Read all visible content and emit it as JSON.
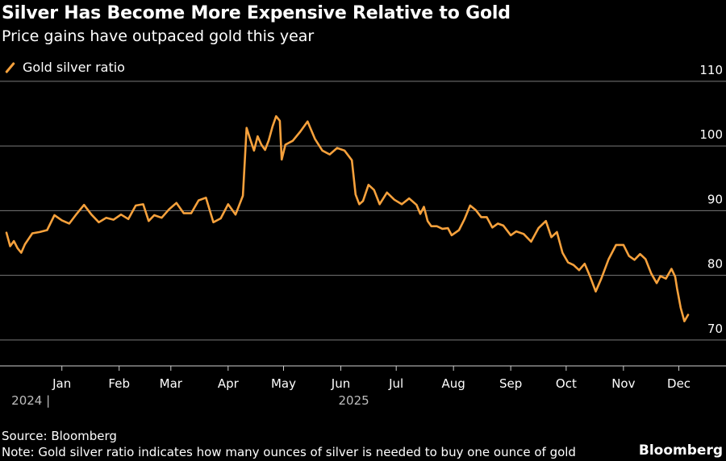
{
  "title": "Silver Has Become More Expensive Relative to Gold",
  "subtitle": "Price gains have outpaced gold this year",
  "source": "Source: Bloomberg",
  "note": "Note: Gold silver ratio indicates how many ounces of silver is needed to buy one ounce of gold",
  "brand": "Bloomberg",
  "colors": {
    "background": "#000000",
    "series": "#F6A13C",
    "grid": "#7a7a7a",
    "text": "#ffffff"
  },
  "chart_data": {
    "type": "line",
    "title": "Silver Has Become More Expensive Relative to Gold",
    "subtitle": "Price gains have outpaced gold this year",
    "xlabel": "",
    "ylabel": "",
    "ylim": [
      66,
      106
    ],
    "yticks": [
      70,
      80,
      90,
      100,
      110
    ],
    "xticks": [
      {
        "label": "Jan",
        "date": "2025-01-01"
      },
      {
        "label": "Feb",
        "date": "2025-02-01"
      },
      {
        "label": "Mar",
        "date": "2025-03-01"
      },
      {
        "label": "Apr",
        "date": "2025-04-01"
      },
      {
        "label": "May",
        "date": "2025-05-01"
      },
      {
        "label": "Jun",
        "date": "2025-06-01"
      },
      {
        "label": "Jul",
        "date": "2025-07-01"
      },
      {
        "label": "Aug",
        "date": "2025-08-01"
      },
      {
        "label": "Sep",
        "date": "2025-09-01"
      },
      {
        "label": "Oct",
        "date": "2025-10-01"
      },
      {
        "label": "Nov",
        "date": "2025-11-01"
      },
      {
        "label": "Dec",
        "date": "2025-12-01"
      }
    ],
    "year_labels": [
      {
        "label": "2024 |",
        "date": "2024-12-06"
      },
      {
        "label": "2025",
        "date": "2025-06-01"
      }
    ],
    "grid": true,
    "legend_position": "top-left",
    "series": [
      {
        "name": "Gold silver ratio",
        "color": "#F6A13C",
        "points": [
          [
            "2024-12-02",
            86.6
          ],
          [
            "2024-12-04",
            84.5
          ],
          [
            "2024-12-06",
            85.3
          ],
          [
            "2024-12-08",
            84.2
          ],
          [
            "2024-12-10",
            83.5
          ],
          [
            "2024-12-12",
            84.8
          ],
          [
            "2024-12-16",
            86.5
          ],
          [
            "2024-12-20",
            86.7
          ],
          [
            "2024-12-24",
            87.0
          ],
          [
            "2024-12-28",
            89.3
          ],
          [
            "2025-01-01",
            88.5
          ],
          [
            "2025-01-05",
            88.0
          ],
          [
            "2025-01-09",
            89.5
          ],
          [
            "2025-01-13",
            90.9
          ],
          [
            "2025-01-17",
            89.4
          ],
          [
            "2025-01-21",
            88.2
          ],
          [
            "2025-01-25",
            88.9
          ],
          [
            "2025-01-29",
            88.6
          ],
          [
            "2025-02-02",
            89.4
          ],
          [
            "2025-02-06",
            88.7
          ],
          [
            "2025-02-10",
            90.8
          ],
          [
            "2025-02-14",
            91.0
          ],
          [
            "2025-02-17",
            88.4
          ],
          [
            "2025-02-20",
            89.3
          ],
          [
            "2025-02-24",
            88.9
          ],
          [
            "2025-02-28",
            90.2
          ],
          [
            "2025-03-04",
            91.2
          ],
          [
            "2025-03-08",
            89.6
          ],
          [
            "2025-03-12",
            89.6
          ],
          [
            "2025-03-16",
            91.6
          ],
          [
            "2025-03-20",
            92.0
          ],
          [
            "2025-03-24",
            88.2
          ],
          [
            "2025-03-28",
            88.8
          ],
          [
            "2025-04-01",
            91.0
          ],
          [
            "2025-04-05",
            89.4
          ],
          [
            "2025-04-09",
            92.3
          ],
          [
            "2025-04-11",
            102.8
          ],
          [
            "2025-04-13",
            101.0
          ],
          [
            "2025-04-15",
            99.3
          ],
          [
            "2025-04-17",
            101.5
          ],
          [
            "2025-04-19",
            100.2
          ],
          [
            "2025-04-21",
            99.4
          ],
          [
            "2025-04-23",
            100.9
          ],
          [
            "2025-04-25",
            103.0
          ],
          [
            "2025-04-27",
            104.6
          ],
          [
            "2025-04-29",
            103.9
          ],
          [
            "2025-04-30",
            97.9
          ],
          [
            "2025-05-02",
            100.2
          ],
          [
            "2025-05-06",
            100.8
          ],
          [
            "2025-05-10",
            102.2
          ],
          [
            "2025-05-14",
            103.8
          ],
          [
            "2025-05-18",
            101.1
          ],
          [
            "2025-05-22",
            99.3
          ],
          [
            "2025-05-26",
            98.7
          ],
          [
            "2025-05-30",
            99.7
          ],
          [
            "2025-06-03",
            99.3
          ],
          [
            "2025-06-07",
            97.8
          ],
          [
            "2025-06-09",
            92.5
          ],
          [
            "2025-06-11",
            91.0
          ],
          [
            "2025-06-13",
            91.5
          ],
          [
            "2025-06-16",
            94.0
          ],
          [
            "2025-06-19",
            93.2
          ],
          [
            "2025-06-22",
            91.0
          ],
          [
            "2025-06-26",
            92.8
          ],
          [
            "2025-06-30",
            91.7
          ],
          [
            "2025-07-04",
            91.0
          ],
          [
            "2025-07-08",
            91.9
          ],
          [
            "2025-07-12",
            90.9
          ],
          [
            "2025-07-14",
            89.5
          ],
          [
            "2025-07-16",
            90.6
          ],
          [
            "2025-07-18",
            88.4
          ],
          [
            "2025-07-20",
            87.6
          ],
          [
            "2025-07-23",
            87.6
          ],
          [
            "2025-07-26",
            87.2
          ],
          [
            "2025-07-29",
            87.3
          ],
          [
            "2025-07-31",
            86.2
          ],
          [
            "2025-08-04",
            87.0
          ],
          [
            "2025-08-07",
            88.7
          ],
          [
            "2025-08-10",
            90.8
          ],
          [
            "2025-08-13",
            90.1
          ],
          [
            "2025-08-16",
            89.0
          ],
          [
            "2025-08-19",
            89.0
          ],
          [
            "2025-08-22",
            87.4
          ],
          [
            "2025-08-25",
            88.0
          ],
          [
            "2025-08-28",
            87.7
          ],
          [
            "2025-09-01",
            86.2
          ],
          [
            "2025-09-04",
            86.8
          ],
          [
            "2025-09-08",
            86.4
          ],
          [
            "2025-09-12",
            85.2
          ],
          [
            "2025-09-16",
            87.3
          ],
          [
            "2025-09-20",
            88.4
          ],
          [
            "2025-09-23",
            85.9
          ],
          [
            "2025-09-26",
            86.7
          ],
          [
            "2025-09-29",
            83.5
          ],
          [
            "2025-10-02",
            82.0
          ],
          [
            "2025-10-05",
            81.6
          ],
          [
            "2025-10-08",
            80.8
          ],
          [
            "2025-10-11",
            81.8
          ],
          [
            "2025-10-14",
            79.8
          ],
          [
            "2025-10-17",
            77.5
          ],
          [
            "2025-10-20",
            79.5
          ],
          [
            "2025-10-24",
            82.5
          ],
          [
            "2025-10-28",
            84.7
          ],
          [
            "2025-11-01",
            84.7
          ],
          [
            "2025-11-04",
            83.0
          ],
          [
            "2025-11-07",
            82.4
          ],
          [
            "2025-11-10",
            83.3
          ],
          [
            "2025-11-13",
            82.5
          ],
          [
            "2025-11-16",
            80.3
          ],
          [
            "2025-11-19",
            78.8
          ],
          [
            "2025-11-21",
            79.9
          ],
          [
            "2025-11-24",
            79.5
          ],
          [
            "2025-11-27",
            81.0
          ],
          [
            "2025-11-29",
            79.8
          ],
          [
            "2025-11-30",
            78.0
          ],
          [
            "2025-12-02",
            75.0
          ],
          [
            "2025-12-04",
            72.9
          ],
          [
            "2025-12-06",
            73.9
          ]
        ]
      }
    ]
  }
}
